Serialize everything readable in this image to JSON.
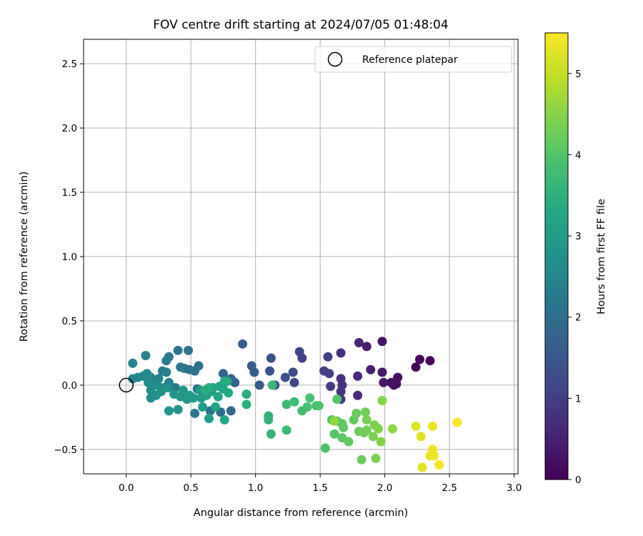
{
  "chart_data": {
    "type": "scatter",
    "title": "FOV centre drift starting at 2024/07/05 01:48:04",
    "xlabel": "Angular distance from reference (arcmin)",
    "ylabel": "Rotation from reference (arcmin)",
    "xlim": [
      -0.33,
      3.03
    ],
    "ylim": [
      -0.69,
      2.69
    ],
    "xticks": [
      0.0,
      0.5,
      1.0,
      1.5,
      2.0,
      2.5,
      3.0
    ],
    "xtick_labels": [
      "0.0",
      "0.5",
      "1.0",
      "1.5",
      "2.0",
      "2.5",
      "3.0"
    ],
    "yticks": [
      -0.5,
      0.0,
      0.5,
      1.0,
      1.5,
      2.0,
      2.5
    ],
    "ytick_labels": [
      "−0.5",
      "0.0",
      "0.5",
      "1.0",
      "1.5",
      "2.0",
      "2.5"
    ],
    "grid": true,
    "legend": {
      "position": "top-right",
      "entries": [
        "Reference platepar"
      ]
    },
    "reference_point": {
      "x": 0.0,
      "y": 0.0,
      "marker": "open-circle",
      "name": "Reference platepar"
    },
    "colorbar": {
      "label": "Hours from first FF file",
      "range": [
        0,
        5.5
      ],
      "ticks": [
        0,
        1,
        2,
        3,
        4,
        5
      ],
      "tick_labels": [
        "0",
        "1",
        "2",
        "3",
        "4",
        "5"
      ],
      "colormap": "viridis"
    },
    "points": [
      {
        "x": 2.35,
        "y": 0.19,
        "c": 0.05
      },
      {
        "x": 2.27,
        "y": 0.2,
        "c": 0.08
      },
      {
        "x": 2.24,
        "y": 0.14,
        "c": 0.1
      },
      {
        "x": 2.1,
        "y": 0.06,
        "c": 0.15
      },
      {
        "x": 2.07,
        "y": 0.0,
        "c": 0.2
      },
      {
        "x": 2.05,
        "y": 0.02,
        "c": 0.22
      },
      {
        "x": 2.09,
        "y": 0.01,
        "c": 0.25
      },
      {
        "x": 1.98,
        "y": 0.34,
        "c": 0.3
      },
      {
        "x": 1.98,
        "y": 0.1,
        "c": 0.35
      },
      {
        "x": 1.99,
        "y": 0.02,
        "c": 0.38
      },
      {
        "x": 1.86,
        "y": 0.3,
        "c": 0.45
      },
      {
        "x": 1.89,
        "y": 0.12,
        "c": 0.5
      },
      {
        "x": 1.8,
        "y": 0.33,
        "c": 0.55
      },
      {
        "x": 1.79,
        "y": 0.07,
        "c": 0.6
      },
      {
        "x": 1.79,
        "y": -0.08,
        "c": 0.65
      },
      {
        "x": 1.66,
        "y": 0.25,
        "c": 0.7
      },
      {
        "x": 1.66,
        "y": 0.05,
        "c": 0.75
      },
      {
        "x": 1.67,
        "y": 0.0,
        "c": 0.8
      },
      {
        "x": 1.66,
        "y": -0.05,
        "c": 0.85
      },
      {
        "x": 1.66,
        "y": -0.11,
        "c": 0.9
      },
      {
        "x": 1.58,
        "y": -0.01,
        "c": 0.95
      },
      {
        "x": 1.57,
        "y": 0.09,
        "c": 1.0
      },
      {
        "x": 1.56,
        "y": 0.22,
        "c": 1.02
      },
      {
        "x": 1.53,
        "y": 0.11,
        "c": 1.05
      },
      {
        "x": 1.36,
        "y": 0.21,
        "c": 1.1
      },
      {
        "x": 1.34,
        "y": 0.26,
        "c": 1.15
      },
      {
        "x": 1.3,
        "y": 0.02,
        "c": 1.2
      },
      {
        "x": 1.29,
        "y": 0.1,
        "c": 1.25
      },
      {
        "x": 1.23,
        "y": 0.06,
        "c": 1.3
      },
      {
        "x": 1.15,
        "y": 0.0,
        "c": 1.35
      },
      {
        "x": 1.12,
        "y": 0.21,
        "c": 1.4
      },
      {
        "x": 1.11,
        "y": 0.11,
        "c": 1.45
      },
      {
        "x": 1.03,
        "y": 0.0,
        "c": 1.5
      },
      {
        "x": 0.99,
        "y": 0.1,
        "c": 1.55
      },
      {
        "x": 0.97,
        "y": 0.15,
        "c": 1.6
      },
      {
        "x": 0.9,
        "y": 0.32,
        "c": 1.65
      },
      {
        "x": 0.84,
        "y": 0.02,
        "c": 1.7
      },
      {
        "x": 0.81,
        "y": 0.05,
        "c": 1.75
      },
      {
        "x": 0.75,
        "y": 0.09,
        "c": 1.8
      },
      {
        "x": 0.81,
        "y": -0.2,
        "c": 1.85
      },
      {
        "x": 0.73,
        "y": -0.21,
        "c": 1.9
      },
      {
        "x": 0.65,
        "y": -0.2,
        "c": 1.95
      },
      {
        "x": 0.55,
        "y": -0.03,
        "c": 2.0
      },
      {
        "x": 0.53,
        "y": 0.11,
        "c": 2.02
      },
      {
        "x": 0.56,
        "y": 0.15,
        "c": 2.05
      },
      {
        "x": 0.53,
        "y": -0.22,
        "c": 2.08
      },
      {
        "x": 0.48,
        "y": 0.27,
        "c": 2.1
      },
      {
        "x": 0.49,
        "y": 0.12,
        "c": 2.12
      },
      {
        "x": 0.45,
        "y": 0.13,
        "c": 2.15
      },
      {
        "x": 0.4,
        "y": 0.27,
        "c": 2.18
      },
      {
        "x": 0.42,
        "y": 0.14,
        "c": 2.2
      },
      {
        "x": 0.38,
        "y": -0.02,
        "c": 2.22
      },
      {
        "x": 0.33,
        "y": 0.22,
        "c": 2.25
      },
      {
        "x": 0.31,
        "y": 0.19,
        "c": 2.28
      },
      {
        "x": 0.28,
        "y": 0.11,
        "c": 2.3
      },
      {
        "x": 0.31,
        "y": 0.1,
        "c": 2.32
      },
      {
        "x": 0.33,
        "y": 0.02,
        "c": 2.35
      },
      {
        "x": 0.29,
        "y": -0.02,
        "c": 2.38
      },
      {
        "x": 0.25,
        "y": 0.05,
        "c": 2.4
      },
      {
        "x": 0.19,
        "y": 0.06,
        "c": 2.42
      },
      {
        "x": 0.15,
        "y": 0.23,
        "c": 2.45
      },
      {
        "x": 0.05,
        "y": 0.17,
        "c": 2.48
      },
      {
        "x": 0.05,
        "y": 0.05,
        "c": 2.5
      },
      {
        "x": 0.09,
        "y": 0.06,
        "c": 2.52
      },
      {
        "x": 0.13,
        "y": 0.07,
        "c": 2.55
      },
      {
        "x": 0.16,
        "y": 0.09,
        "c": 2.58
      },
      {
        "x": 0.17,
        "y": 0.02,
        "c": 2.6
      },
      {
        "x": 0.2,
        "y": 0.01,
        "c": 2.62
      },
      {
        "x": 0.19,
        "y": -0.04,
        "c": 2.65
      },
      {
        "x": 0.19,
        "y": -0.1,
        "c": 2.68
      },
      {
        "x": 0.23,
        "y": -0.08,
        "c": 2.7
      },
      {
        "x": 0.24,
        "y": 0.0,
        "c": 2.72
      },
      {
        "x": 0.27,
        "y": -0.05,
        "c": 2.75
      },
      {
        "x": 0.32,
        "y": -0.02,
        "c": 2.78
      },
      {
        "x": 0.33,
        "y": -0.2,
        "c": 2.8
      },
      {
        "x": 0.4,
        "y": -0.19,
        "c": 2.82
      },
      {
        "x": 0.37,
        "y": -0.07,
        "c": 2.85
      },
      {
        "x": 0.42,
        "y": -0.09,
        "c": 2.88
      },
      {
        "x": 0.44,
        "y": -0.04,
        "c": 2.9
      },
      {
        "x": 0.49,
        "y": -0.08,
        "c": 2.92
      },
      {
        "x": 0.47,
        "y": -0.11,
        "c": 2.95
      },
      {
        "x": 0.52,
        "y": -0.1,
        "c": 2.98
      },
      {
        "x": 0.57,
        "y": -0.04,
        "c": 3.0
      },
      {
        "x": 0.58,
        "y": -0.1,
        "c": 3.02
      },
      {
        "x": 0.59,
        "y": -0.17,
        "c": 3.05
      },
      {
        "x": 0.62,
        "y": -0.08,
        "c": 3.08
      },
      {
        "x": 0.64,
        "y": -0.26,
        "c": 3.1
      },
      {
        "x": 0.66,
        "y": -0.05,
        "c": 3.12
      },
      {
        "x": 0.67,
        "y": -0.02,
        "c": 3.15
      },
      {
        "x": 0.69,
        "y": -0.17,
        "c": 3.18
      },
      {
        "x": 0.71,
        "y": -0.09,
        "c": 3.2
      },
      {
        "x": 0.72,
        "y": -0.01,
        "c": 3.22
      },
      {
        "x": 0.75,
        "y": -0.03,
        "c": 3.25
      },
      {
        "x": 0.76,
        "y": -0.27,
        "c": 3.28
      },
      {
        "x": 0.79,
        "y": -0.06,
        "c": 3.3
      },
      {
        "x": 0.76,
        "y": 0.03,
        "c": 3.32
      },
      {
        "x": 0.78,
        "y": 0.03,
        "c": 3.35
      },
      {
        "x": 0.61,
        "y": -0.04,
        "c": 3.38
      },
      {
        "x": 0.64,
        "y": -0.02,
        "c": 3.4
      },
      {
        "x": 0.93,
        "y": -0.07,
        "c": 3.45
      },
      {
        "x": 0.93,
        "y": -0.15,
        "c": 3.5
      },
      {
        "x": 1.1,
        "y": -0.24,
        "c": 3.55
      },
      {
        "x": 1.1,
        "y": -0.27,
        "c": 3.58
      },
      {
        "x": 1.12,
        "y": -0.38,
        "c": 3.62
      },
      {
        "x": 1.13,
        "y": 0.0,
        "c": 3.65
      },
      {
        "x": 1.24,
        "y": -0.15,
        "c": 3.7
      },
      {
        "x": 1.24,
        "y": -0.35,
        "c": 3.72
      },
      {
        "x": 1.3,
        "y": -0.13,
        "c": 3.75
      },
      {
        "x": 1.36,
        "y": -0.2,
        "c": 3.8
      },
      {
        "x": 1.4,
        "y": -0.17,
        "c": 3.85
      },
      {
        "x": 1.42,
        "y": -0.1,
        "c": 3.88
      },
      {
        "x": 1.47,
        "y": -0.16,
        "c": 3.9
      },
      {
        "x": 1.49,
        "y": -0.16,
        "c": 3.92
      },
      {
        "x": 1.54,
        "y": -0.49,
        "c": 3.95
      },
      {
        "x": 1.59,
        "y": -0.27,
        "c": 3.98
      },
      {
        "x": 1.61,
        "y": -0.38,
        "c": 4.0
      },
      {
        "x": 1.63,
        "y": -0.11,
        "c": 4.02
      },
      {
        "x": 1.63,
        "y": -0.28,
        "c": 4.05
      },
      {
        "x": 1.67,
        "y": -0.3,
        "c": 4.08
      },
      {
        "x": 1.68,
        "y": -0.33,
        "c": 4.1
      },
      {
        "x": 1.67,
        "y": -0.41,
        "c": 4.12
      },
      {
        "x": 1.72,
        "y": -0.44,
        "c": 4.15
      },
      {
        "x": 1.76,
        "y": -0.27,
        "c": 4.18
      },
      {
        "x": 1.78,
        "y": -0.22,
        "c": 4.2
      },
      {
        "x": 1.8,
        "y": -0.36,
        "c": 4.22
      },
      {
        "x": 1.82,
        "y": -0.58,
        "c": 4.25
      },
      {
        "x": 1.84,
        "y": -0.37,
        "c": 4.28
      },
      {
        "x": 1.85,
        "y": -0.21,
        "c": 4.3
      },
      {
        "x": 1.86,
        "y": -0.35,
        "c": 4.32
      },
      {
        "x": 1.86,
        "y": -0.27,
        "c": 4.35
      },
      {
        "x": 1.91,
        "y": -0.4,
        "c": 4.38
      },
      {
        "x": 1.92,
        "y": -0.31,
        "c": 4.4
      },
      {
        "x": 1.93,
        "y": -0.57,
        "c": 4.42
      },
      {
        "x": 1.95,
        "y": -0.34,
        "c": 4.45
      },
      {
        "x": 1.97,
        "y": -0.44,
        "c": 4.48
      },
      {
        "x": 1.98,
        "y": -0.12,
        "c": 4.5
      },
      {
        "x": 2.06,
        "y": -0.34,
        "c": 4.55
      },
      {
        "x": 1.61,
        "y": -0.28,
        "c": 4.6
      },
      {
        "x": 2.24,
        "y": -0.32,
        "c": 5.2
      },
      {
        "x": 2.28,
        "y": -0.4,
        "c": 5.25
      },
      {
        "x": 2.29,
        "y": -0.64,
        "c": 5.3
      },
      {
        "x": 2.35,
        "y": -0.55,
        "c": 5.33
      },
      {
        "x": 2.37,
        "y": -0.32,
        "c": 5.35
      },
      {
        "x": 2.37,
        "y": -0.5,
        "c": 5.38
      },
      {
        "x": 2.38,
        "y": -0.55,
        "c": 5.4
      },
      {
        "x": 2.42,
        "y": -0.62,
        "c": 5.42
      },
      {
        "x": 2.56,
        "y": -0.29,
        "c": 5.45
      }
    ]
  }
}
